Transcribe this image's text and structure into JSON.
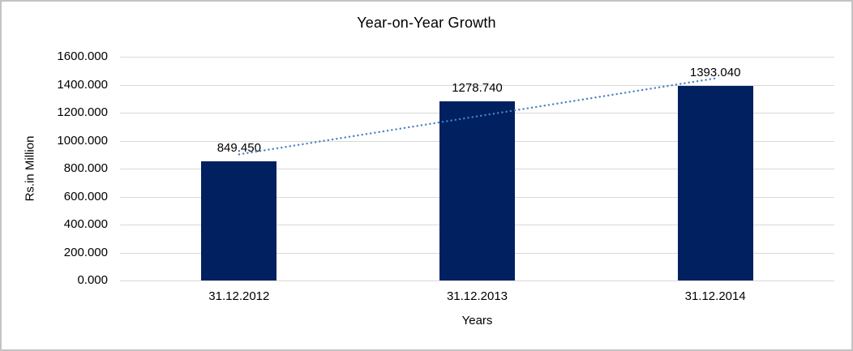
{
  "chart_data": {
    "type": "bar",
    "title": "Year-on-Year Growth",
    "xlabel": "Years",
    "ylabel": "Rs.in Million",
    "categories": [
      "31.12.2012",
      "31.12.2013",
      "31.12.2014"
    ],
    "values": [
      849.45,
      1278.74,
      1393.04
    ],
    "data_labels": [
      "849.450",
      "1278.740",
      "1393.040"
    ],
    "ylim": [
      0,
      1600
    ],
    "ytick_labels": [
      "0.000",
      "200.000",
      "400.000",
      "600.000",
      "800.000",
      "1000.000",
      "1200.000",
      "1400.000",
      "1600.000"
    ],
    "grid": "horizontal",
    "legend": "none",
    "bar_color": "#002060",
    "gridline_color": "#d9d9d9",
    "trendline": {
      "type": "linear",
      "style": "round-dot",
      "color": "#4a82c4"
    }
  }
}
